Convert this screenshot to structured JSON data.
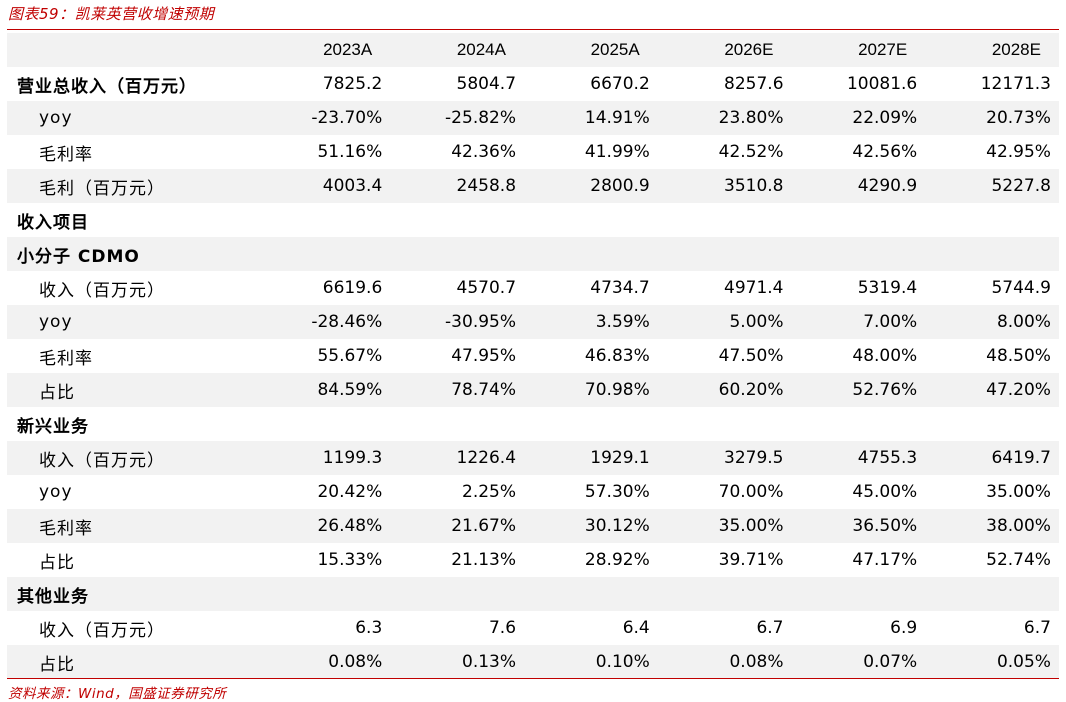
{
  "caption": "图表59：凯莱英营收增速预期",
  "source": "资料来源：Wind，国盛证券研究所",
  "columns": [
    "2023A",
    "2024A",
    "2025A",
    "2026E",
    "2027E",
    "2028E"
  ],
  "rows": [
    {
      "label": "营业总收入（百万元）",
      "style": "bold",
      "values": [
        "7825.2",
        "5804.7",
        "6670.2",
        "8257.6",
        "10081.6",
        "12171.3"
      ]
    },
    {
      "label": "yoy",
      "style": "sub",
      "values": [
        "-23.70%",
        "-25.82%",
        "14.91%",
        "23.80%",
        "22.09%",
        "20.73%"
      ]
    },
    {
      "label": "毛利率",
      "style": "sub",
      "values": [
        "51.16%",
        "42.36%",
        "41.99%",
        "42.52%",
        "42.56%",
        "42.95%"
      ]
    },
    {
      "label": "毛利（百万元）",
      "style": "sub",
      "values": [
        "4003.4",
        "2458.8",
        "2800.9",
        "3510.8",
        "4290.9",
        "5227.8"
      ]
    },
    {
      "label": "收入项目",
      "style": "bold",
      "values": [
        "",
        "",
        "",
        "",
        "",
        ""
      ]
    },
    {
      "label": "小分子 CDMO",
      "style": "bold",
      "values": [
        "",
        "",
        "",
        "",
        "",
        ""
      ]
    },
    {
      "label": "收入（百万元）",
      "style": "sub",
      "values": [
        "6619.6",
        "4570.7",
        "4734.7",
        "4971.4",
        "5319.4",
        "5744.9"
      ]
    },
    {
      "label": "yoy",
      "style": "sub",
      "values": [
        "-28.46%",
        "-30.95%",
        "3.59%",
        "5.00%",
        "7.00%",
        "8.00%"
      ]
    },
    {
      "label": "毛利率",
      "style": "sub",
      "values": [
        "55.67%",
        "47.95%",
        "46.83%",
        "47.50%",
        "48.00%",
        "48.50%"
      ]
    },
    {
      "label": "占比",
      "style": "sub",
      "values": [
        "84.59%",
        "78.74%",
        "70.98%",
        "60.20%",
        "52.76%",
        "47.20%"
      ]
    },
    {
      "label": "新兴业务",
      "style": "bold",
      "values": [
        "",
        "",
        "",
        "",
        "",
        ""
      ]
    },
    {
      "label": "收入（百万元）",
      "style": "sub",
      "values": [
        "1199.3",
        "1226.4",
        "1929.1",
        "3279.5",
        "4755.3",
        "6419.7"
      ]
    },
    {
      "label": "yoy",
      "style": "sub",
      "values": [
        "20.42%",
        "2.25%",
        "57.30%",
        "70.00%",
        "45.00%",
        "35.00%"
      ]
    },
    {
      "label": "毛利率",
      "style": "sub",
      "values": [
        "26.48%",
        "21.67%",
        "30.12%",
        "35.00%",
        "36.50%",
        "38.00%"
      ]
    },
    {
      "label": "占比",
      "style": "sub",
      "values": [
        "15.33%",
        "21.13%",
        "28.92%",
        "39.71%",
        "47.17%",
        "52.74%"
      ]
    },
    {
      "label": "其他业务",
      "style": "bold",
      "values": [
        "",
        "",
        "",
        "",
        "",
        ""
      ]
    },
    {
      "label": "收入（百万元）",
      "style": "sub",
      "values": [
        "6.3",
        "7.6",
        "6.4",
        "6.7",
        "6.9",
        "6.7"
      ]
    },
    {
      "label": "占比",
      "style": "sub",
      "values": [
        "0.08%",
        "0.13%",
        "0.10%",
        "0.08%",
        "0.07%",
        "0.05%"
      ]
    }
  ]
}
